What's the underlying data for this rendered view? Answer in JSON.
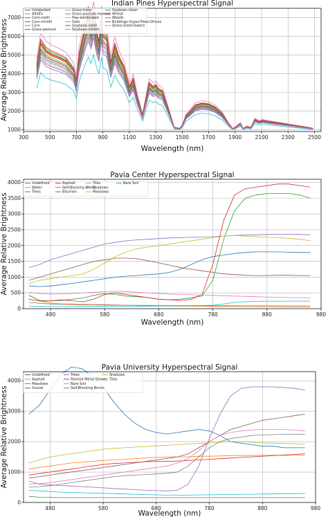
{
  "chart_data": [
    {
      "type": "line",
      "title": "Indian Pines Hyperspectral Signal",
      "xlabel": "Wavelength (nm)",
      "ylabel": "Average Relative Brightness",
      "xlim": [
        300,
        2550
      ],
      "ylim": [
        900,
        7500
      ],
      "xticks": [
        300,
        500,
        700,
        900,
        1100,
        1300,
        1500,
        1700,
        1900,
        2100,
        2300,
        2500
      ],
      "yticks": [
        1000,
        2000,
        3000,
        4000,
        5000,
        6000,
        7000
      ],
      "grid": true,
      "legend_position": "top-left",
      "legend_columns": 3,
      "series": [
        {
          "name": "Unlabelled",
          "color": "#1f77b4"
        },
        {
          "name": "Alfalfa",
          "color": "#ff7f0e"
        },
        {
          "name": "Corn-notill",
          "color": "#2ca02c"
        },
        {
          "name": "Corn-mintill",
          "color": "#d62728"
        },
        {
          "name": "Corn",
          "color": "#9467bd"
        },
        {
          "name": "Grass-pasture",
          "color": "#8c564b"
        },
        {
          "name": "Grass-trees",
          "color": "#e377c2"
        },
        {
          "name": "Grass-pasture-mowed",
          "color": "#7f7f7f"
        },
        {
          "name": "Hay-windrowed",
          "color": "#bcbd22"
        },
        {
          "name": "Oats",
          "color": "#17becf"
        },
        {
          "name": "Soybean-notill",
          "color": "#1f77b4"
        },
        {
          "name": "Soybean-mintill",
          "color": "#ff7f0e"
        },
        {
          "name": "Soybean-clean",
          "color": "#2ca02c"
        },
        {
          "name": "Wheat",
          "color": "#d62728"
        },
        {
          "name": "Woods",
          "color": "#9467bd"
        },
        {
          "name": "Buildings-Grass-Trees-Drives",
          "color": "#8c564b"
        },
        {
          "name": "Stone-Steel-Towers",
          "color": "#e377c2"
        }
      ],
      "lines": {
        "x": [
          400,
          430,
          470,
          520,
          560,
          620,
          680,
          700,
          720,
          760,
          790,
          810,
          830,
          850,
          870,
          890,
          900,
          930,
          960,
          990,
          1020,
          1060,
          1100,
          1130,
          1160,
          1200,
          1250,
          1280,
          1300,
          1320,
          1350,
          1390,
          1420,
          1440,
          1480,
          1500,
          1530,
          1560,
          1600,
          1650,
          1700,
          1750,
          1800,
          1850,
          1880,
          1900,
          1940,
          1960,
          1990,
          2020,
          2050,
          2080,
          2110,
          2150,
          2200,
          2250,
          2300,
          2350,
          2400,
          2450,
          2490
        ],
        "base": [
          4200,
          5400,
          5000,
          4800,
          4700,
          4500,
          4000,
          3400,
          4700,
          5900,
          6600,
          6100,
          6800,
          5900,
          5300,
          6600,
          5800,
          5600,
          4300,
          5200,
          4600,
          4100,
          3100,
          3500,
          2600,
          1700,
          3300,
          3100,
          3200,
          3000,
          2900,
          2100,
          1500,
          1100,
          1050,
          1200,
          1700,
          1900,
          2200,
          2300,
          2250,
          2100,
          1800,
          1300,
          1050,
          1100,
          1300,
          1050,
          1150,
          1100,
          1500,
          1400,
          1450,
          1400,
          1350,
          1300,
          1250,
          1200,
          1150,
          1100,
          1050
        ],
        "scale": [
          1.0,
          0.97,
          1.08,
          1.05,
          0.95,
          1.03,
          1.18,
          0.88,
          1.0,
          0.7,
          0.98,
          1.04,
          0.93,
          1.1,
          0.85,
          1.06,
          0.9
        ]
      }
    },
    {
      "type": "line",
      "title": "Pavia Center Hyperspectral Signal",
      "xlabel": "Wavelength (nm)",
      "ylabel": "Average Relative Brightness",
      "xlim": [
        430,
        980
      ],
      "ylim": [
        0,
        4100
      ],
      "xticks": [
        480,
        580,
        680,
        780,
        880,
        980
      ],
      "yticks": [
        0,
        500,
        1000,
        1500,
        2000,
        2500,
        3000,
        3500,
        4000
      ],
      "grid": true,
      "legend_position": "top-left",
      "legend_columns": 4,
      "x": [
        440,
        460,
        480,
        500,
        520,
        540,
        560,
        580,
        600,
        620,
        640,
        660,
        680,
        700,
        720,
        740,
        760,
        780,
        800,
        820,
        840,
        860,
        880,
        900,
        920,
        940,
        960
      ],
      "series": [
        {
          "name": "Undefined",
          "color": "#1f77b4",
          "values": [
            720,
            700,
            720,
            760,
            800,
            850,
            900,
            950,
            1000,
            1030,
            1050,
            1080,
            1100,
            1150,
            1250,
            1400,
            1550,
            1650,
            1700,
            1750,
            1780,
            1800,
            1800,
            1800,
            1790,
            1780,
            1780
          ]
        },
        {
          "name": "Water",
          "color": "#ff7f0e",
          "values": [
            420,
            250,
            180,
            150,
            150,
            140,
            130,
            130,
            120,
            110,
            100,
            95,
            90,
            85,
            80,
            78,
            75,
            72,
            70,
            68,
            66,
            65,
            63,
            62,
            60,
            60,
            58
          ]
        },
        {
          "name": "Trees",
          "color": "#2ca02c",
          "values": [
            420,
            260,
            250,
            260,
            300,
            340,
            420,
            480,
            450,
            400,
            380,
            350,
            300,
            280,
            300,
            350,
            400,
            900,
            2200,
            3100,
            3500,
            3600,
            3650,
            3650,
            3650,
            3600,
            3500
          ]
        },
        {
          "name": "Asphalt",
          "color": "#d62728",
          "values": [
            300,
            240,
            250,
            280,
            250,
            220,
            300,
            450,
            500,
            450,
            400,
            350,
            300,
            280,
            260,
            300,
            450,
            1400,
            2800,
            3600,
            3800,
            3850,
            3900,
            3950,
            3950,
            3900,
            3850
          ]
        },
        {
          "name": "Self-Blocking Bricks",
          "color": "#9467bd",
          "values": [
            1300,
            1400,
            1550,
            1650,
            1750,
            1850,
            1950,
            2050,
            2100,
            2150,
            2180,
            2200,
            2220,
            2240,
            2250,
            2260,
            2270,
            2280,
            2300,
            2320,
            2330,
            2340,
            2350,
            2360,
            2350,
            2350,
            2340
          ]
        },
        {
          "name": "Bitumen",
          "color": "#8c564b",
          "values": [
            900,
            1000,
            1100,
            1200,
            1300,
            1400,
            1500,
            1550,
            1600,
            1600,
            1580,
            1520,
            1450,
            1380,
            1300,
            1250,
            1200,
            1150,
            1100,
            1080,
            1060,
            1050,
            1050,
            1060,
            1060,
            1050,
            1050
          ]
        },
        {
          "name": "Tiles",
          "color": "#e377c2",
          "values": [
            520,
            480,
            460,
            470,
            480,
            500,
            520,
            540,
            550,
            540,
            520,
            500,
            480,
            460,
            450,
            440,
            430,
            420,
            410,
            400,
            390,
            380,
            370,
            360,
            350,
            350,
            340
          ]
        },
        {
          "name": "Shadows",
          "color": "#7f7f7f",
          "values": [
            200,
            170,
            150,
            140,
            130,
            125,
            120,
            115,
            110,
            108,
            105,
            102,
            100,
            98,
            96,
            95,
            94,
            93,
            92,
            91,
            90,
            90,
            89,
            88,
            88,
            87,
            86
          ]
        },
        {
          "name": "Meadows",
          "color": "#bcbd22",
          "values": [
            800,
            900,
            950,
            1000,
            1050,
            1100,
            1250,
            1450,
            1650,
            1800,
            1900,
            1950,
            2000,
            2050,
            2100,
            2150,
            2200,
            2250,
            2300,
            2320,
            2300,
            2280,
            2260,
            2250,
            2230,
            2200,
            2150
          ]
        },
        {
          "name": "Bare Soil",
          "color": "#17becf",
          "values": [
            80,
            70,
            65,
            65,
            68,
            70,
            72,
            74,
            76,
            78,
            80,
            82,
            85,
            88,
            90,
            95,
            100,
            110,
            150,
            200,
            220,
            230,
            240,
            240,
            240,
            240,
            240
          ]
        }
      ]
    },
    {
      "type": "line",
      "title": "Pavia University Hyperspectral Signal",
      "xlabel": "Wavelength (nm)",
      "ylabel": "Average Relative Brightness",
      "xlim": [
        430,
        980
      ],
      "ylim": [
        0,
        4300
      ],
      "xticks": [
        480,
        580,
        680,
        780,
        880,
        980
      ],
      "yticks": [
        0,
        1000,
        2000,
        3000,
        4000
      ],
      "grid": true,
      "legend_position": "top-left",
      "legend_columns": 3,
      "x": [
        440,
        460,
        480,
        500,
        520,
        540,
        560,
        580,
        600,
        620,
        640,
        660,
        680,
        700,
        720,
        740,
        760,
        780,
        800,
        820,
        840,
        860,
        880,
        900,
        920,
        940,
        960
      ],
      "series": [
        {
          "name": "Undefined",
          "color": "#1f77b4",
          "values": [
            2900,
            3200,
            3700,
            4200,
            4450,
            4400,
            4150,
            3800,
            3300,
            2900,
            2600,
            2400,
            2300,
            2250,
            2300,
            2350,
            2400,
            2350,
            2200,
            2000,
            1950,
            1900,
            1850,
            1850,
            1800,
            1800,
            1800
          ]
        },
        {
          "name": "Asphalt",
          "color": "#ff7f0e",
          "values": [
            1100,
            1150,
            1200,
            1250,
            1300,
            1320,
            1350,
            1380,
            1400,
            1420,
            1440,
            1460,
            1480,
            1500,
            1500,
            1500,
            1520,
            1520,
            1530,
            1540,
            1540,
            1540,
            1550,
            1550,
            1550,
            1550,
            1550
          ]
        },
        {
          "name": "Meadows",
          "color": "#2ca02c",
          "values": [
            200,
            170,
            165,
            160,
            160,
            160,
            160,
            160,
            160,
            160,
            160,
            160,
            160,
            160,
            160,
            160,
            160,
            160,
            160,
            160,
            160,
            160,
            160,
            160,
            160,
            160,
            160
          ]
        },
        {
          "name": "Gravel",
          "color": "#d62728",
          "values": [
            900,
            950,
            1000,
            1050,
            1100,
            1150,
            1200,
            1250,
            1280,
            1300,
            1320,
            1340,
            1350,
            1350,
            1360,
            1380,
            1400,
            1420,
            1440,
            1460,
            1480,
            1500,
            1520,
            1540,
            1560,
            1580,
            1600
          ]
        },
        {
          "name": "Trees",
          "color": "#9467bd",
          "values": [
            700,
            600,
            580,
            560,
            540,
            520,
            500,
            480,
            460,
            440,
            420,
            400,
            390,
            380,
            400,
            600,
            1200,
            2100,
            2900,
            3500,
            3750,
            3800,
            3800,
            3800,
            3780,
            3750,
            3700
          ]
        },
        {
          "name": "Painted Metal Sheets",
          "color": "#8c564b",
          "values": [
            800,
            850,
            900,
            950,
            1000,
            1050,
            1100,
            1150,
            1200,
            1250,
            1300,
            1350,
            1400,
            1450,
            1500,
            1600,
            1800,
            2000,
            2200,
            2400,
            2500,
            2600,
            2700,
            2750,
            2800,
            2850,
            2900
          ]
        },
        {
          "name": "Bare Soil",
          "color": "#e377c2",
          "values": [
            600,
            620,
            650,
            700,
            750,
            800,
            850,
            900,
            950,
            1000,
            1050,
            1100,
            1150,
            1200,
            1300,
            1450,
            1700,
            2000,
            2200,
            2300,
            2350,
            2380,
            2400,
            2400,
            2400,
            2380,
            2350
          ]
        },
        {
          "name": "Self-Blocking Bricks",
          "color": "#7f7f7f",
          "values": [
            500,
            520,
            550,
            600,
            650,
            700,
            750,
            800,
            850,
            880,
            900,
            920,
            940,
            960,
            1000,
            1200,
            1500,
            1800,
            2000,
            2100,
            2150,
            2200,
            2220,
            2230,
            2240,
            2240,
            2240
          ]
        },
        {
          "name": "Shadows",
          "color": "#bcbd22",
          "values": [
            1300,
            1400,
            1500,
            1550,
            1600,
            1650,
            1700,
            1750,
            1780,
            1800,
            1820,
            1840,
            1860,
            1880,
            1900,
            1920,
            1940,
            1960,
            1980,
            2000,
            2000,
            1980,
            1960,
            1950,
            1940,
            1930,
            1920
          ]
        },
        {
          "name": "Tiles",
          "color": "#17becf",
          "values": [
            400,
            380,
            360,
            340,
            330,
            320,
            310,
            300,
            290,
            280,
            270,
            260,
            250,
            240,
            240,
            240,
            250,
            250,
            260,
            260,
            270,
            270,
            280,
            280,
            290,
            290,
            300
          ]
        }
      ]
    }
  ]
}
